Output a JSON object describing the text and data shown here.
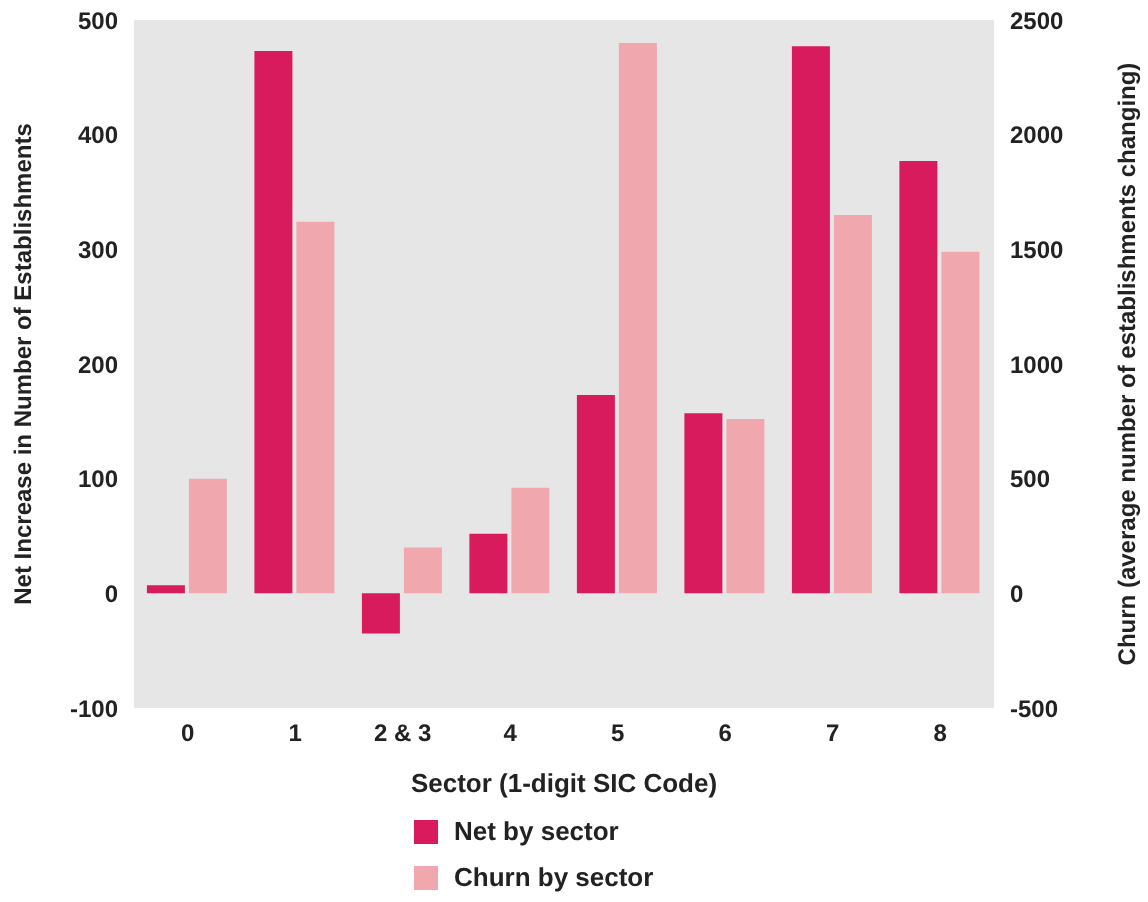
{
  "chart_data": {
    "type": "bar",
    "xlabel": "Sector (1-digit SIC Code)",
    "ylabel": "Net Increase in Number of Establishments",
    "y2label": "Churn (average number of establishments changing)",
    "categories": [
      "0",
      "1",
      "2 & 3",
      "4",
      "5",
      "6",
      "7",
      "8"
    ],
    "series": [
      {
        "name": "Net by sector",
        "color": "#d81b5c",
        "values": [
          7,
          473,
          -35,
          52,
          173,
          157,
          477,
          377
        ]
      },
      {
        "name": "Churn by sector",
        "color": "#f0a8ae",
        "axis": "y2",
        "values": [
          500,
          1620,
          200,
          460,
          2400,
          760,
          1650,
          1490
        ]
      }
    ],
    "ylim": [
      -100,
      500
    ],
    "yticks": [
      -100,
      0,
      100,
      200,
      300,
      400,
      500
    ],
    "y2lim": [
      -500,
      2500
    ],
    "y2ticks": [
      -500,
      0,
      500,
      1000,
      1500,
      2000,
      2500
    ],
    "grid": false,
    "legend": "bottom"
  }
}
